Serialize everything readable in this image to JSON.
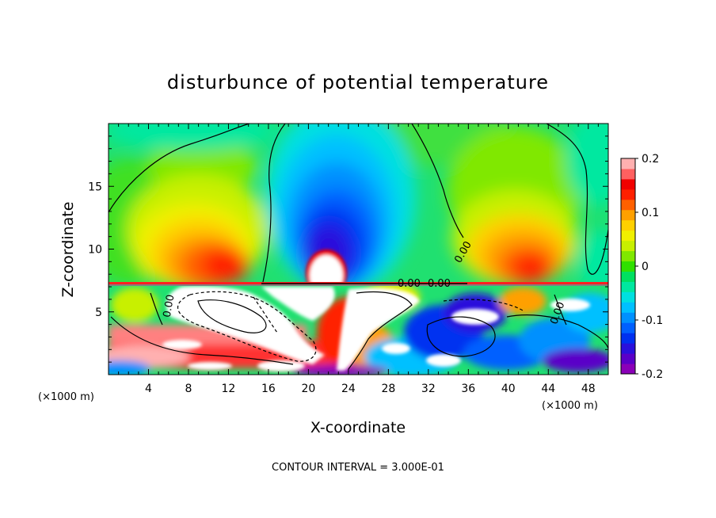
{
  "chart_data": {
    "type": "heatmap",
    "title": "disturbunce of potential temperature",
    "xlabel": "X-coordinate",
    "ylabel": "Z-coordinate",
    "x_unit": "(×1000 m)",
    "x_unit_right": "(×1000 m)",
    "x_ticks": [
      4,
      8,
      12,
      16,
      20,
      24,
      28,
      32,
      36,
      40,
      44,
      48
    ],
    "y_ticks": [
      5,
      10,
      15
    ],
    "xlim": [
      0,
      50
    ],
    "ylim": [
      0,
      20
    ],
    "colorbar": {
      "ticks": [
        "0.2",
        "0.1",
        "0",
        "-0.1",
        "-0.2"
      ],
      "tick_values": [
        0.2,
        0.1,
        0,
        -0.1,
        -0.2
      ],
      "range": [
        -0.2,
        0.2
      ],
      "colors": [
        "#8a00b8",
        "#5a00c8",
        "#2a10dc",
        "#0030f0",
        "#0060ff",
        "#0090ff",
        "#00c0ff",
        "#00e0e0",
        "#00e8a0",
        "#00e060",
        "#30e000",
        "#80e800",
        "#c8f000",
        "#f0f000",
        "#ffd000",
        "#ffa000",
        "#ff6000",
        "#ff2000",
        "#f00000",
        "#ff6060",
        "#ffb0b0"
      ]
    },
    "contour_labels": [
      "0.00",
      "0.00",
      "0.00",
      "0.00",
      "0.00"
    ],
    "annotation": "CONTOUR INTERVAL = 3.000E-01",
    "features": [
      {
        "region": "upper-left warm anomaly",
        "x": [
          4,
          15
        ],
        "z": [
          7,
          14
        ],
        "max": 0.18
      },
      {
        "region": "central cold anomaly",
        "x": [
          16,
          34
        ],
        "z": [
          7,
          17
        ],
        "min": -0.18
      },
      {
        "region": "upper-right warm anomaly",
        "x": [
          36,
          46
        ],
        "z": [
          7,
          14
        ],
        "max": 0.18
      },
      {
        "region": "central white (out of range) plume",
        "x": [
          20,
          24
        ],
        "z": [
          7,
          10
        ]
      }
    ]
  }
}
